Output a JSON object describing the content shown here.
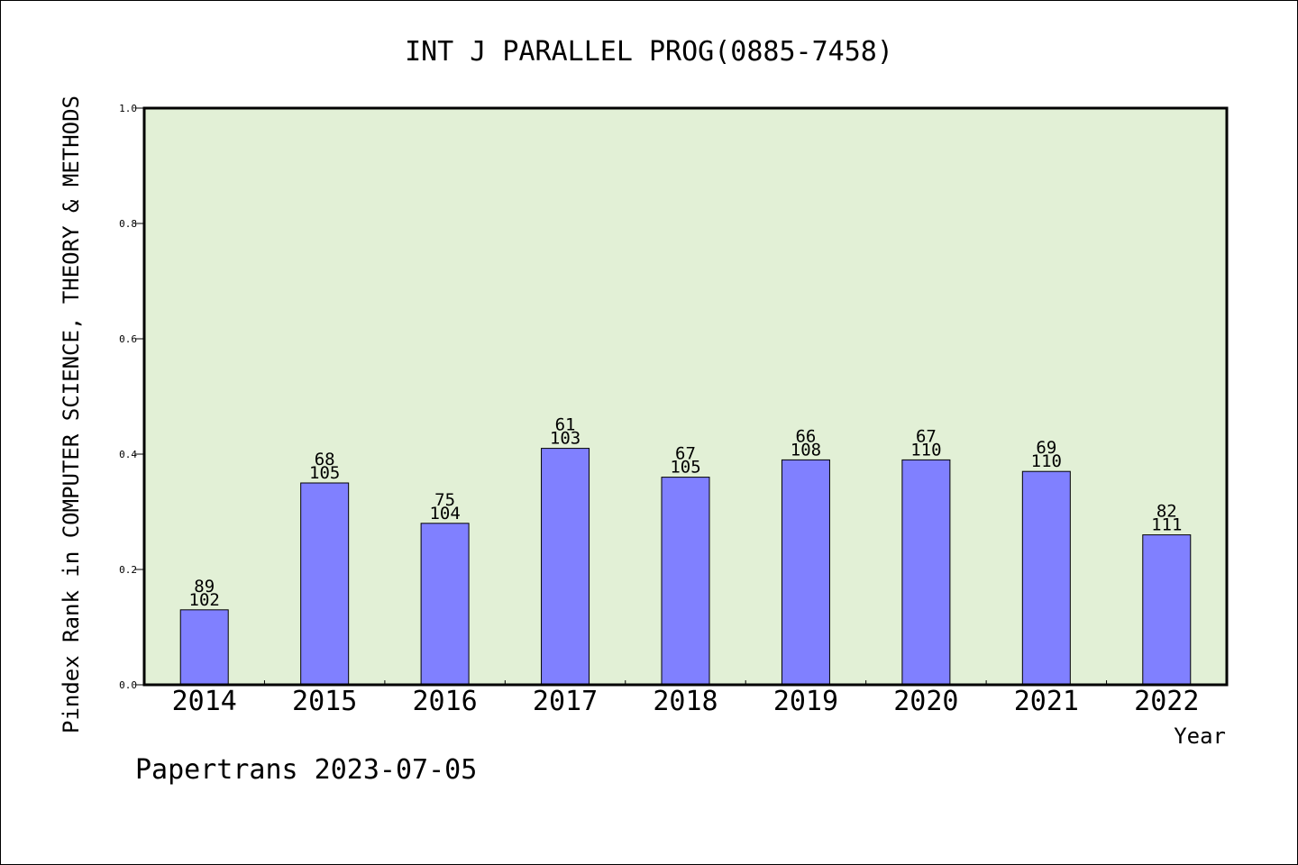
{
  "chart_data": {
    "type": "bar",
    "title": "INT J PARALLEL PROG(0885-7458)",
    "xlabel": "Year",
    "ylabel": "Pindex Rank in COMPUTER SCIENCE, THEORY & METHODS",
    "footer": "Papertrans 2023-07-05",
    "categories": [
      "2014",
      "2015",
      "2016",
      "2017",
      "2018",
      "2019",
      "2020",
      "2021",
      "2022"
    ],
    "values": [
      0.13,
      0.35,
      0.28,
      0.41,
      0.36,
      0.39,
      0.39,
      0.37,
      0.26
    ],
    "rank_labels": [
      "89",
      "68",
      "75",
      "61",
      "67",
      "66",
      "67",
      "69",
      "82"
    ],
    "total_labels": [
      "102",
      "105",
      "104",
      "103",
      "105",
      "108",
      "110",
      "110",
      "111"
    ],
    "ylim": [
      0,
      1.0
    ],
    "yticks": [
      "0.0",
      "0.2",
      "0.4",
      "0.6",
      "0.8",
      "1.0"
    ],
    "grid": false,
    "colors": {
      "plot_background": "#e2f0d6",
      "bar_fill": "#8080ff",
      "bar_stroke": "#000000",
      "frame": "#000000"
    }
  }
}
